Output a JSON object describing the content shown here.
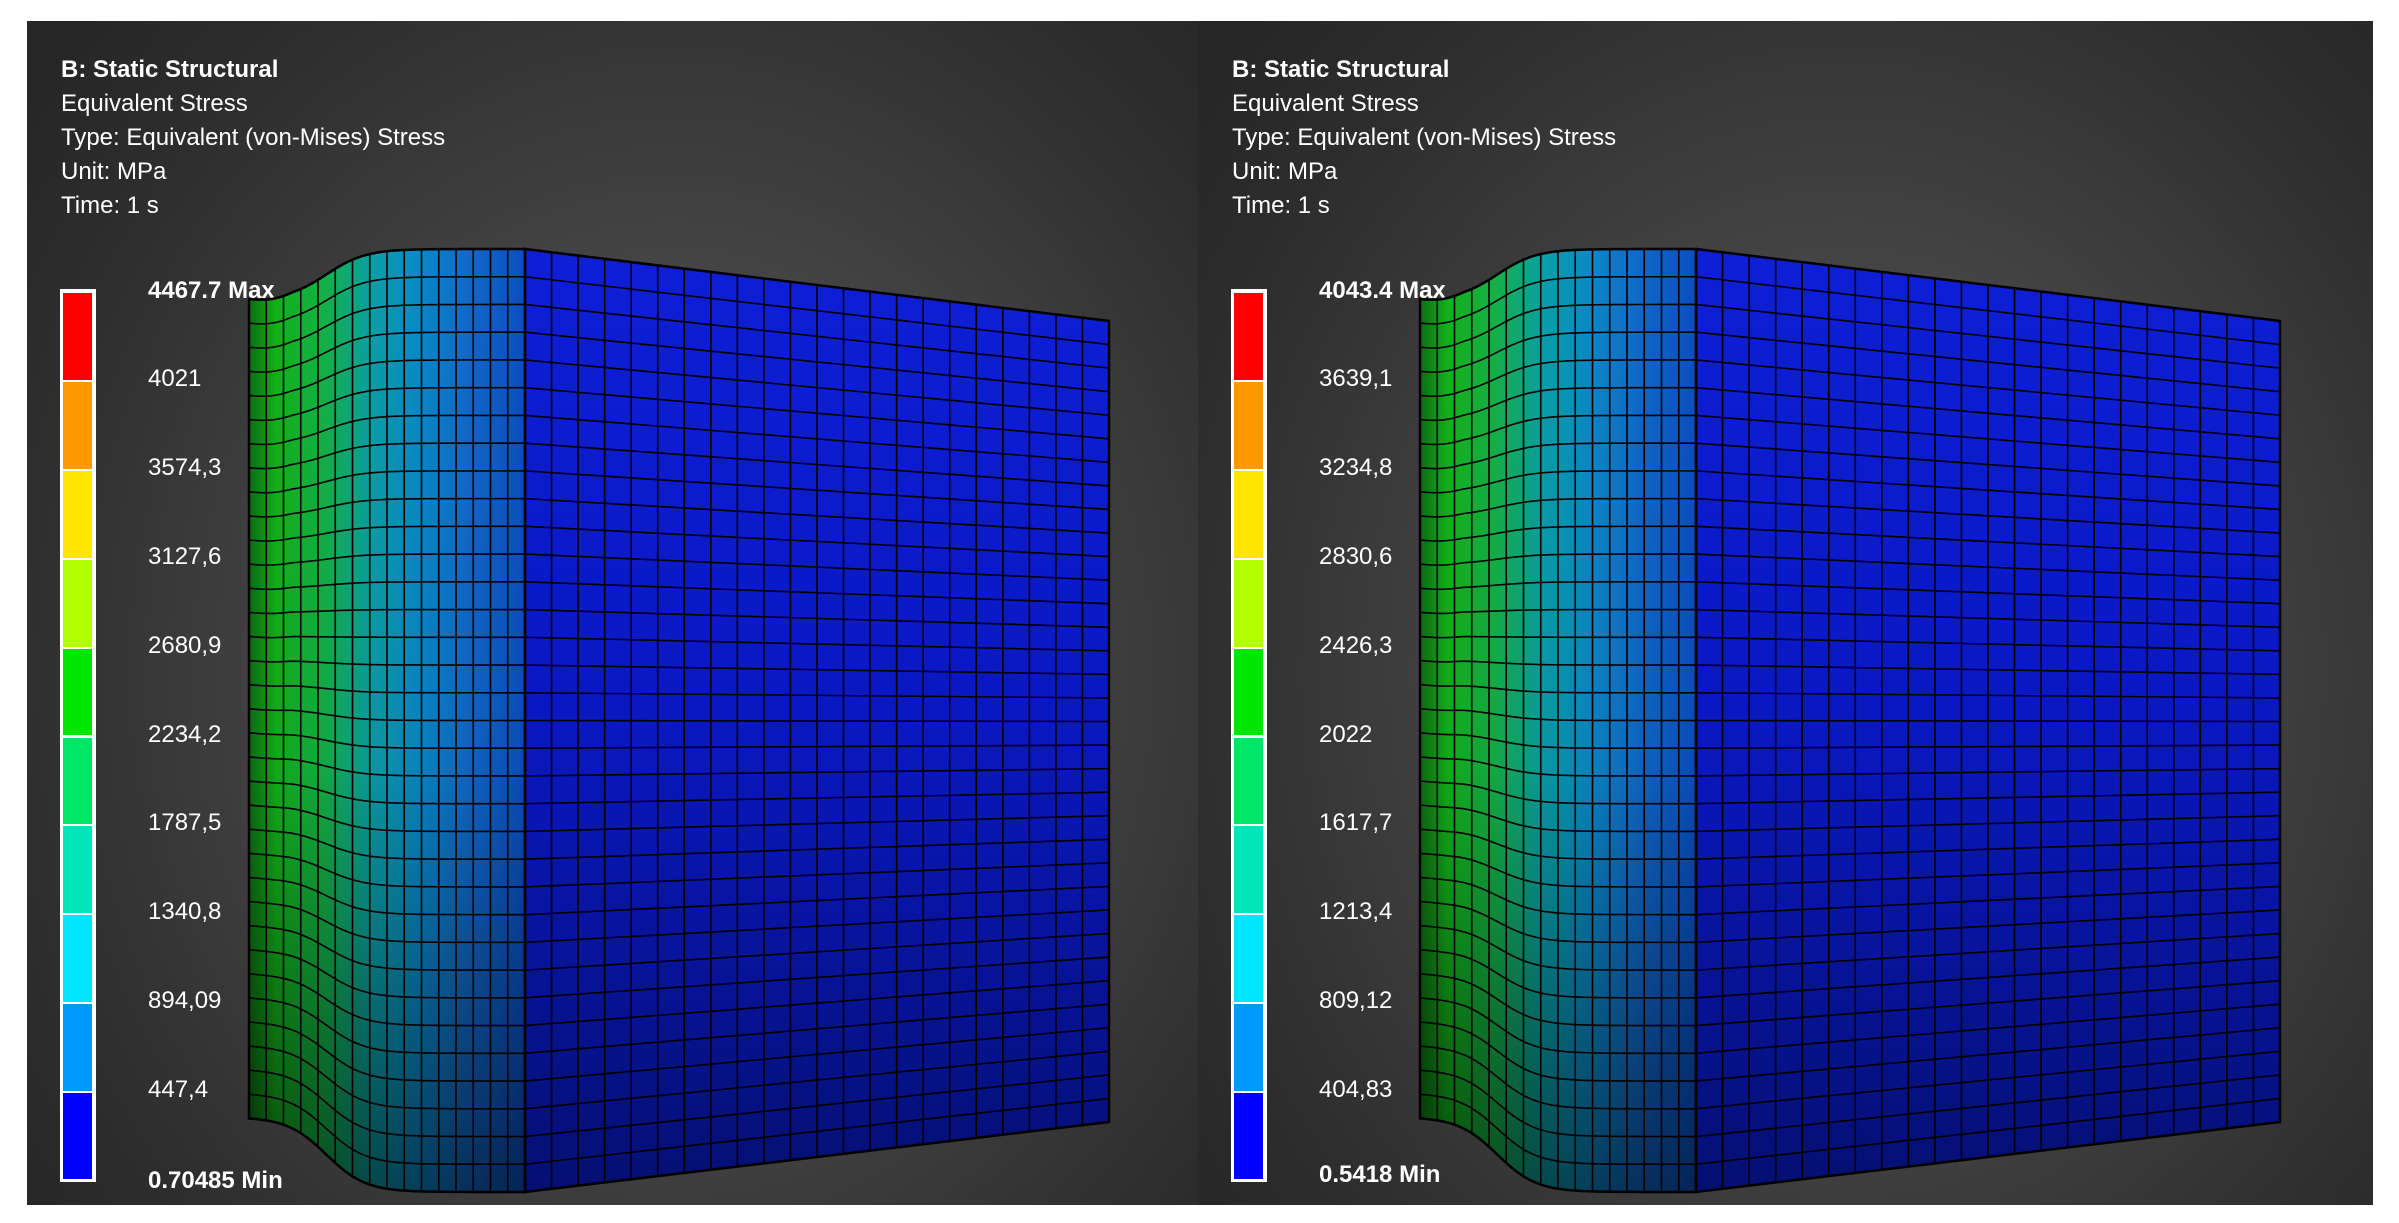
{
  "panels": [
    {
      "title": "B: Static Structural",
      "result": "Equivalent Stress",
      "type": "Type: Equivalent (von-Mises) Stress",
      "unit": "Unit: MPa",
      "time": "Time: 1 s",
      "legend": {
        "max_label": "4467.7 Max",
        "min_label": "0.70485 Min",
        "ticks": [
          "4021",
          "3574,3",
          "3127,6",
          "2680,9",
          "2234,2",
          "1787,5",
          "1340,8",
          "894,09",
          "447,4"
        ]
      }
    },
    {
      "title": "B: Static Structural",
      "result": "Equivalent Stress",
      "type": "Type: Equivalent (von-Mises) Stress",
      "unit": "Unit: MPa",
      "time": "Time: 1 s",
      "legend": {
        "max_label": "4043.4 Max",
        "min_label": "0.5418 Min",
        "ticks": [
          "3639,1",
          "3234,8",
          "2830,6",
          "2426,3",
          "2022",
          "1617,7",
          "1213,4",
          "809,12",
          "404,83"
        ]
      }
    }
  ],
  "colors": {
    "legend_bands_top_to_bottom": [
      "#ff0000",
      "#ff9900",
      "#ffe500",
      "#b2ff00",
      "#00e600",
      "#00e666",
      "#00e6b8",
      "#00e6ff",
      "#0099ff",
      "#0000ff"
    ],
    "mesh_lines": "#000000"
  }
}
